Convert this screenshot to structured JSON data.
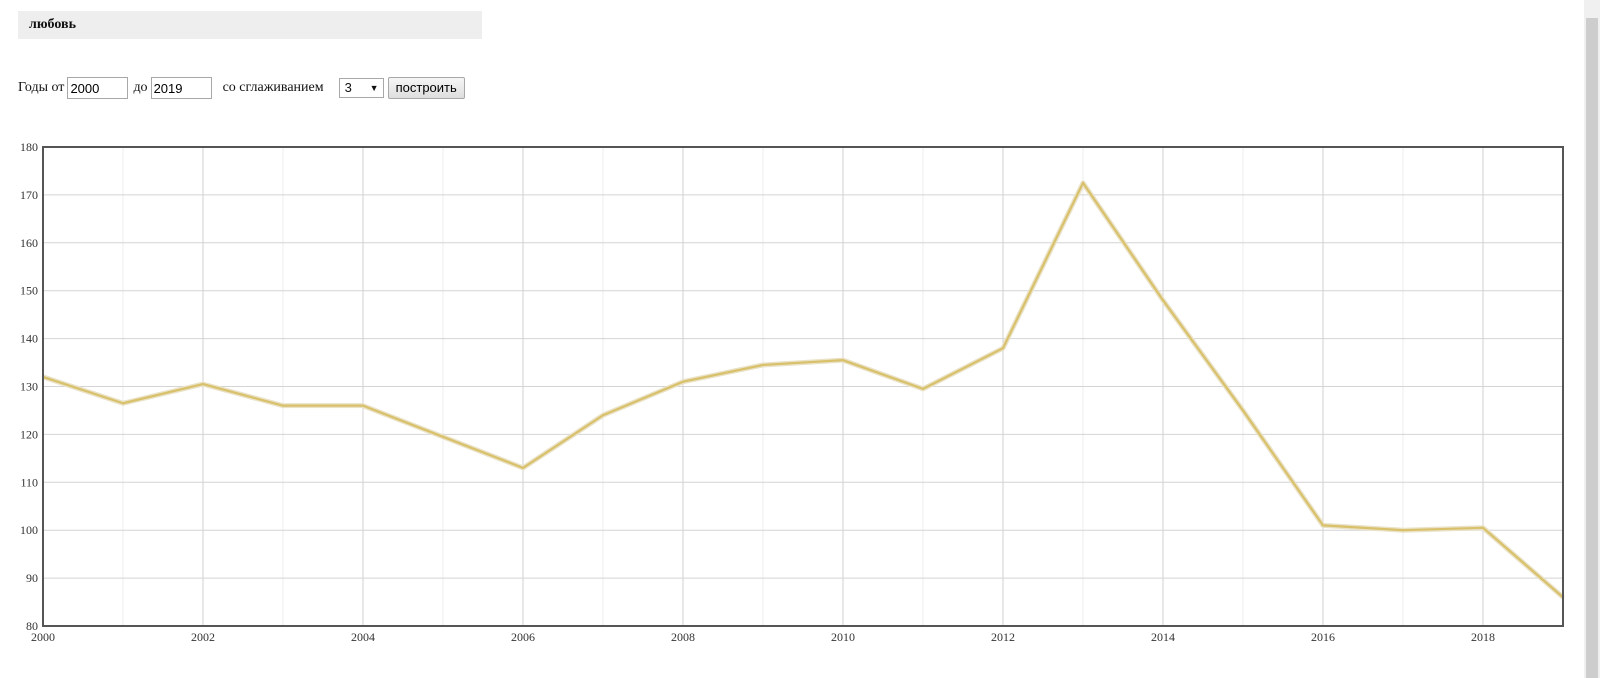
{
  "page": {
    "title": "любовь"
  },
  "controls": {
    "years_from_label": "Годы от",
    "year_from": "2000",
    "years_to_label": "до",
    "year_to": "2019",
    "smoothing_label": "со сглаживанием",
    "smoothing_value": "3",
    "build_button": "построить"
  },
  "chart_data": {
    "type": "line",
    "x": [
      2000,
      2001,
      2002,
      2003,
      2004,
      2005,
      2006,
      2007,
      2008,
      2009,
      2010,
      2011,
      2012,
      2013,
      2014,
      2015,
      2016,
      2017,
      2018,
      2019
    ],
    "series": [
      {
        "color": "#d9c06a",
        "values": [
          132,
          126.5,
          130.5,
          126,
          126,
          119.5,
          113,
          124,
          131,
          134.5,
          135.5,
          129.5,
          138,
          172.5,
          148,
          125,
          101,
          100,
          100.5,
          86
        ]
      }
    ],
    "xlim": [
      2000,
      2019
    ],
    "ylim": [
      80,
      180
    ],
    "x_ticks": [
      2000,
      2002,
      2004,
      2006,
      2008,
      2010,
      2012,
      2014,
      2016,
      2018
    ],
    "y_ticks": [
      80,
      90,
      100,
      110,
      120,
      130,
      140,
      150,
      160,
      170,
      180
    ],
    "grid": true
  }
}
